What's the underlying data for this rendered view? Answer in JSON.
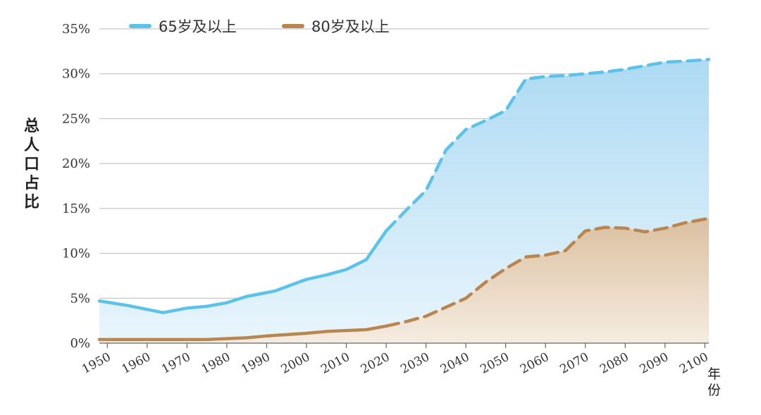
{
  "chart_data": {
    "type": "area",
    "xlabel": "年份",
    "ylabel": "总人口占比",
    "x_ticks": [
      1950,
      1960,
      1970,
      1980,
      1990,
      2000,
      2010,
      2020,
      2030,
      2040,
      2050,
      2060,
      2070,
      2080,
      2090,
      2100
    ],
    "y_ticks": [
      "0%",
      "5%",
      "10%",
      "15%",
      "20%",
      "25%",
      "30%",
      "35%"
    ],
    "xlim": [
      1948,
      2101
    ],
    "ylim": [
      0,
      35
    ],
    "grid": true,
    "legend_position": "top",
    "projection_start_year": 2020,
    "series": [
      {
        "name": "65岁及以上",
        "color": "#5bc3ea",
        "x": [
          1948,
          1955,
          1964,
          1970,
          1975,
          1980,
          1985,
          1992,
          2000,
          2005,
          2010,
          2015,
          2020,
          2025,
          2030,
          2035,
          2040,
          2045,
          2050,
          2055,
          2060,
          2065,
          2070,
          2075,
          2080,
          2085,
          2090,
          2095,
          2101
        ],
        "values": [
          4.7,
          4.2,
          3.4,
          3.9,
          4.1,
          4.5,
          5.2,
          5.8,
          7.1,
          7.6,
          8.2,
          9.3,
          12.5,
          14.8,
          17.0,
          21.5,
          23.8,
          24.8,
          25.9,
          29.4,
          29.7,
          29.8,
          30.0,
          30.2,
          30.5,
          30.9,
          31.3,
          31.4,
          31.6
        ]
      },
      {
        "name": "80岁及以上",
        "color": "#b8864e",
        "x": [
          1948,
          1955,
          1964,
          1970,
          1975,
          1980,
          1985,
          1990,
          2000,
          2005,
          2010,
          2015,
          2020,
          2025,
          2030,
          2035,
          2040,
          2045,
          2050,
          2055,
          2060,
          2065,
          2070,
          2075,
          2080,
          2085,
          2090,
          2095,
          2101
        ],
        "values": [
          0.4,
          0.4,
          0.4,
          0.4,
          0.4,
          0.5,
          0.6,
          0.8,
          1.1,
          1.3,
          1.4,
          1.5,
          1.9,
          2.4,
          3.0,
          4.0,
          5.0,
          6.8,
          8.3,
          9.6,
          9.8,
          10.3,
          12.5,
          12.9,
          12.8,
          12.4,
          12.8,
          13.4,
          13.9
        ]
      }
    ]
  }
}
